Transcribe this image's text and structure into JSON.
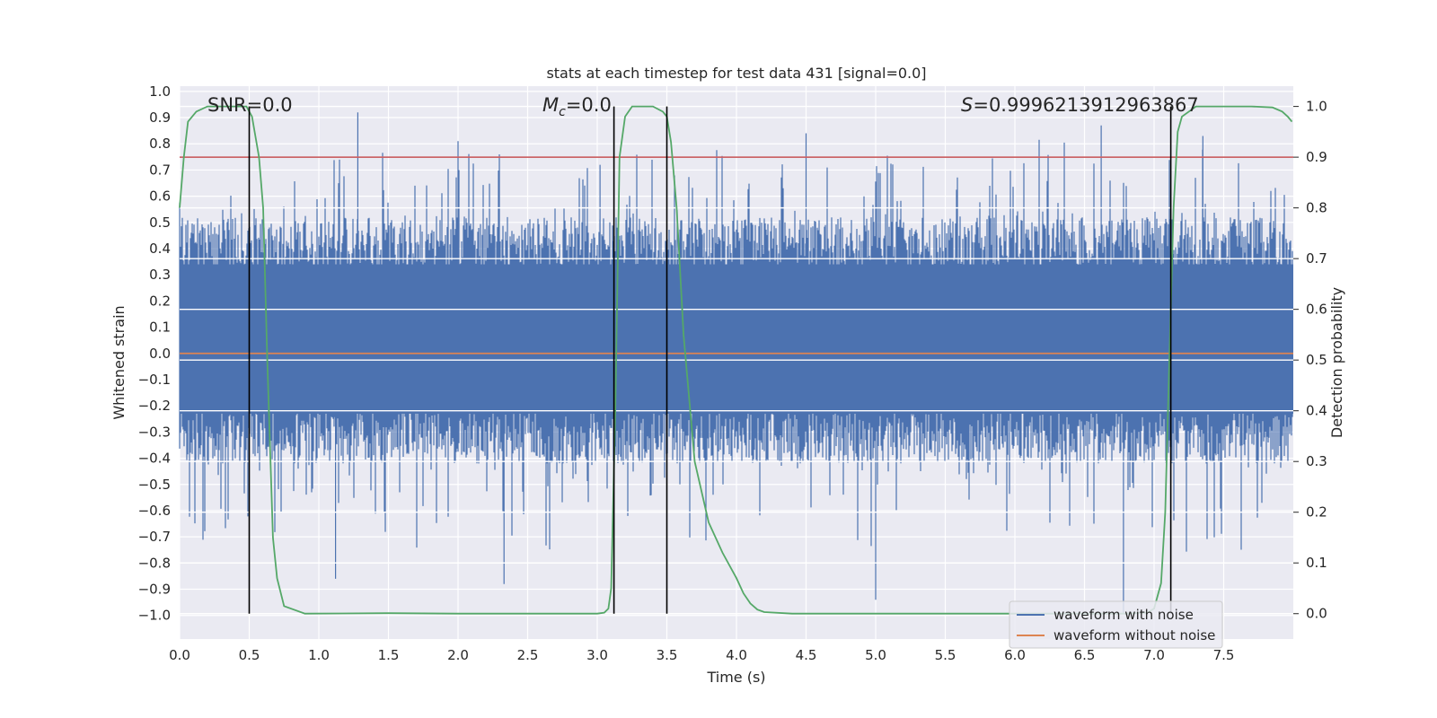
{
  "chart_data": {
    "type": "line",
    "title": "stats at each timestep for test data 431 [signal=0.0]",
    "xlabel": "Time (s)",
    "ylabel": "Whitened strain",
    "y2label": "Detection probability",
    "xlim": [
      0.0,
      8.0
    ],
    "ylim": [
      -1.09,
      1.02
    ],
    "y2lim": [
      -0.05,
      1.04
    ],
    "x_ticks": [
      "0.0",
      "0.5",
      "1.0",
      "1.5",
      "2.0",
      "2.5",
      "3.0",
      "3.5",
      "4.0",
      "4.5",
      "5.0",
      "5.5",
      "6.0",
      "6.5",
      "7.0",
      "7.5"
    ],
    "y_ticks": [
      "1.0",
      "0.9",
      "0.8",
      "0.7",
      "0.6",
      "0.5",
      "0.4",
      "0.3",
      "0.2",
      "0.1",
      "0.0",
      "−0.1",
      "−0.2",
      "−0.3",
      "−0.4",
      "−0.5",
      "−0.6",
      "−0.7",
      "−0.8",
      "−0.9",
      "−1.0"
    ],
    "y2_ticks": [
      "1.0",
      "0.9",
      "0.8",
      "0.7",
      "0.6",
      "0.5",
      "0.4",
      "0.3",
      "0.2",
      "0.1",
      "0.0"
    ],
    "annotations": {
      "snr": "SNR=0.0",
      "mc_symbol": "M",
      "mc_sub": "c",
      "mc_value": "=0.0",
      "s_symbol": "S",
      "s_value": "=0.9996213912963867"
    },
    "threshold_prob": 0.9,
    "vertical_lines_x": [
      0.5,
      3.12,
      3.5,
      7.12
    ],
    "legend": {
      "items": [
        "waveform with noise",
        "waveform without noise"
      ],
      "position": "lower-right"
    },
    "series": [
      {
        "name": "waveform with noise",
        "color": "#4c72b0",
        "description": "dense noise, approx. uniform band -0.42..0.50 with spikes up to 0.92 and down to -0.99"
      },
      {
        "name": "waveform without noise",
        "color": "#dd8452",
        "value": 0.0
      },
      {
        "name": "detection probability",
        "axis": "right",
        "color": "#55a868",
        "x": [
          0.0,
          0.03,
          0.06,
          0.12,
          0.2,
          0.3,
          0.4,
          0.48,
          0.52,
          0.57,
          0.6,
          0.63,
          0.67,
          0.7,
          0.75,
          0.9,
          1.5,
          2.0,
          2.5,
          3.0,
          3.05,
          3.08,
          3.1,
          3.13,
          3.16,
          3.2,
          3.25,
          3.3,
          3.4,
          3.47,
          3.5,
          3.53,
          3.57,
          3.62,
          3.7,
          3.8,
          3.9,
          4.0,
          4.05,
          4.1,
          4.15,
          4.2,
          4.4,
          5.0,
          6.0,
          6.8,
          6.95,
          7.0,
          7.05,
          7.08,
          7.11,
          7.14,
          7.17,
          7.2,
          7.25,
          7.3,
          7.35,
          7.5,
          7.7,
          7.85,
          7.92,
          7.96,
          7.99
        ],
        "y": [
          0.8,
          0.9,
          0.97,
          0.99,
          1.0,
          1.0,
          1.0,
          1.0,
          0.98,
          0.9,
          0.8,
          0.5,
          0.15,
          0.07,
          0.015,
          0.0,
          0.001,
          0.0,
          0.0,
          0.0,
          0.002,
          0.01,
          0.05,
          0.4,
          0.9,
          0.98,
          1.0,
          1.0,
          1.0,
          0.99,
          0.98,
          0.93,
          0.8,
          0.55,
          0.3,
          0.18,
          0.12,
          0.07,
          0.04,
          0.02,
          0.008,
          0.003,
          0.0,
          0.0,
          0.0,
          0.0,
          0.002,
          0.01,
          0.06,
          0.2,
          0.5,
          0.8,
          0.95,
          0.98,
          0.99,
          1.0,
          1.0,
          1.0,
          1.0,
          0.998,
          0.99,
          0.98,
          0.97
        ]
      }
    ]
  }
}
